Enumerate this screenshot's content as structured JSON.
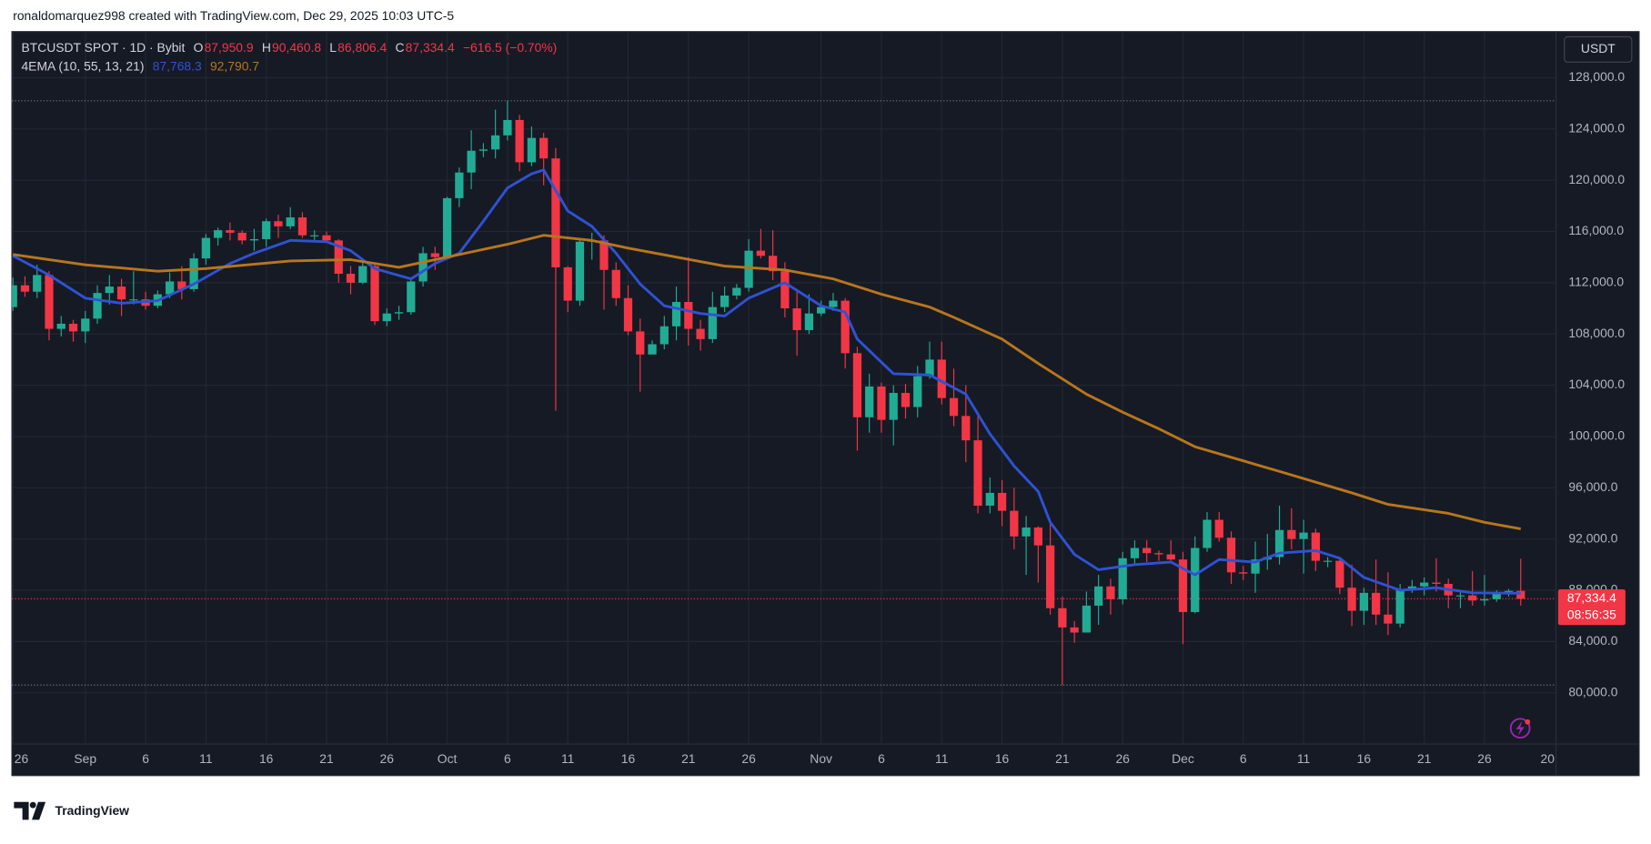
{
  "header": {
    "attribution": "ronaldomarquez998 created with TradingView.com, Dec 29, 2025 10:03 UTC-5"
  },
  "footer": {
    "brand": "TradingView"
  },
  "chart_data": {
    "type": "candlestick",
    "currency": "USDT",
    "legend": {
      "symbol": "BTCUSDT SPOT · 1D · Bybit",
      "items": [
        {
          "key": "O",
          "label": "87,950.9"
        },
        {
          "key": "H",
          "label": "90,460.8"
        },
        {
          "key": "L",
          "label": "86,806.4"
        },
        {
          "key": "C",
          "label": "87,334.4"
        }
      ],
      "change": "−616.5 (−0.70%)"
    },
    "indicator": {
      "name": "4EMA (10, 55, 13, 21)",
      "labels": [
        "87,768.3",
        "92,790.7"
      ]
    },
    "price_label": {
      "label": "87,334.4",
      "countdown": "08:56:35"
    },
    "categories": [
      "26",
      null,
      null,
      null,
      null,
      null,
      "Sep",
      null,
      null,
      null,
      null,
      "6",
      null,
      null,
      null,
      null,
      "11",
      null,
      null,
      null,
      null,
      "16",
      null,
      null,
      null,
      null,
      "21",
      null,
      null,
      null,
      null,
      "26",
      null,
      null,
      null,
      null,
      "Oct",
      null,
      null,
      null,
      null,
      "6",
      null,
      null,
      null,
      null,
      "11",
      null,
      null,
      null,
      null,
      "16",
      null,
      null,
      null,
      null,
      "21",
      null,
      null,
      null,
      null,
      "26",
      null,
      null,
      null,
      null,
      null,
      "Nov",
      null,
      null,
      null,
      null,
      "6",
      null,
      null,
      null,
      null,
      "11",
      null,
      null,
      null,
      null,
      "16",
      null,
      null,
      null,
      null,
      "21",
      null,
      null,
      null,
      null,
      "26",
      null,
      null,
      null,
      null,
      "Dec",
      null,
      null,
      null,
      null,
      "6",
      null,
      null,
      null,
      null,
      "11",
      null,
      null,
      null,
      null,
      "16",
      null,
      null,
      null,
      null,
      "21",
      null,
      null,
      null,
      null,
      "26",
      null,
      null,
      null,
      null,
      null,
      "20"
    ],
    "open": [
      110100,
      111800,
      111300,
      112600,
      108400,
      108800,
      108200,
      109200,
      111200,
      111700,
      110700,
      110700,
      110200,
      111100,
      112100,
      111500,
      113900,
      115500,
      116100,
      115900,
      115300,
      115400,
      116800,
      116400,
      117100,
      115700,
      115700,
      115300,
      112700,
      112000,
      113300,
      109000,
      109600,
      109700,
      112100,
      114300,
      114000,
      118600,
      120600,
      122300,
      122400,
      123500,
      124700,
      121400,
      123300,
      121700,
      113200,
      110600,
      115200,
      115300,
      113000,
      110800,
      108200,
      106400,
      107200,
      108600,
      110500,
      108400,
      107600,
      110100,
      111000,
      111600,
      114500,
      114100,
      112900,
      110000,
      108300,
      109600,
      110100,
      110600,
      106500,
      101500,
      103900,
      101300,
      103400,
      102300,
      104700,
      106000,
      103000,
      101600,
      99700,
      94600,
      95600,
      94200,
      92200,
      92900,
      91500,
      86600,
      85100,
      84700,
      86800,
      88300,
      87300,
      90500,
      91300,
      90900,
      90800,
      90400,
      86300,
      91300,
      93500,
      92100,
      89400,
      89300,
      90400,
      90600,
      92700,
      92000,
      92500,
      90300,
      90300,
      88200,
      86400,
      87800,
      86100,
      85400,
      88100,
      88300,
      88600,
      88500,
      87600,
      87600,
      87200,
      87300,
      87800,
      87950.9,
      null,
      null,
      null
    ],
    "high": [
      112400,
      112500,
      113400,
      112900,
      109400,
      109100,
      109800,
      111800,
      112600,
      112300,
      112900,
      111300,
      111400,
      112800,
      113300,
      114300,
      115800,
      116300,
      116700,
      116100,
      116200,
      117000,
      117300,
      117900,
      117500,
      116100,
      116000,
      115400,
      113300,
      113900,
      113500,
      110000,
      110200,
      112300,
      114800,
      114800,
      118700,
      121000,
      123900,
      122900,
      125500,
      126200,
      125100,
      124200,
      123700,
      122500,
      113300,
      115500,
      115900,
      115700,
      113600,
      111800,
      109200,
      107500,
      109400,
      111700,
      114000,
      109100,
      111300,
      111700,
      111900,
      115400,
      116200,
      116100,
      113600,
      111500,
      111100,
      110600,
      111200,
      110800,
      107000,
      104900,
      104200,
      104000,
      104100,
      105500,
      107400,
      107400,
      105300,
      104000,
      101900,
      96800,
      96600,
      96000,
      93800,
      93000,
      93200,
      87500,
      85600,
      87900,
      89200,
      88900,
      91000,
      91900,
      91900,
      91100,
      91900,
      91000,
      92200,
      94100,
      94100,
      92600,
      89900,
      91800,
      92400,
      94600,
      94400,
      93500,
      92800,
      90600,
      90600,
      90000,
      88200,
      90400,
      89400,
      88500,
      88800,
      89000,
      90500,
      88900,
      88000,
      89500,
      89200,
      88000,
      88100,
      90460.8,
      null,
      null,
      null
    ],
    "low": [
      109800,
      110900,
      110800,
      107500,
      107800,
      107400,
      107300,
      108800,
      110300,
      109400,
      110300,
      109900,
      110000,
      110800,
      110700,
      111300,
      113400,
      114900,
      115300,
      115000,
      114500,
      114800,
      115500,
      116200,
      115500,
      115300,
      115200,
      112000,
      111100,
      111900,
      108700,
      108600,
      109100,
      109500,
      111700,
      113000,
      113900,
      117900,
      119300,
      121800,
      121700,
      123100,
      120700,
      121100,
      119600,
      102000,
      109700,
      110200,
      113800,
      109900,
      110200,
      107900,
      103500,
      106400,
      106800,
      107500,
      107100,
      106700,
      107300,
      109700,
      110700,
      111300,
      113900,
      112200,
      109300,
      106300,
      108000,
      109400,
      109800,
      105300,
      98900,
      100300,
      100300,
      99300,
      101400,
      101500,
      104500,
      102500,
      100800,
      98000,
      94000,
      94000,
      93000,
      91200,
      89200,
      88600,
      86100,
      80600,
      83900,
      84700,
      85300,
      86100,
      86900,
      90100,
      90200,
      90300,
      90300,
      83800,
      86200,
      91000,
      91800,
      88500,
      88800,
      87800,
      89600,
      90000,
      91200,
      89300,
      89500,
      89800,
      87700,
      85200,
      85300,
      85300,
      84500,
      85100,
      87800,
      87600,
      87900,
      86600,
      86600,
      86800,
      86800,
      87100,
      87500,
      86806.4,
      null,
      null,
      null
    ],
    "close": [
      111800,
      111300,
      112600,
      108400,
      108800,
      108200,
      109200,
      111200,
      111700,
      110700,
      110700,
      110200,
      111100,
      112100,
      111500,
      113900,
      115500,
      116100,
      115900,
      115300,
      115400,
      116800,
      116400,
      117100,
      115700,
      115700,
      115300,
      112700,
      112000,
      113300,
      109000,
      109600,
      109700,
      112100,
      114300,
      114000,
      118600,
      120600,
      122300,
      122400,
      123500,
      124700,
      121400,
      123300,
      121700,
      113200,
      110600,
      115200,
      115300,
      113000,
      110800,
      108200,
      106400,
      107200,
      108600,
      110500,
      108400,
      107600,
      110100,
      111000,
      111600,
      114500,
      114100,
      112900,
      110000,
      108300,
      109600,
      110100,
      110600,
      106500,
      101500,
      103900,
      101300,
      103400,
      102300,
      104700,
      106000,
      103000,
      101600,
      99700,
      94600,
      95600,
      94200,
      92200,
      92900,
      91500,
      86600,
      85100,
      84700,
      86800,
      88300,
      87300,
      90500,
      91300,
      90900,
      90800,
      90400,
      86300,
      91300,
      93500,
      92100,
      89400,
      89300,
      90400,
      90600,
      92700,
      92000,
      92500,
      90300,
      90300,
      88200,
      86400,
      87800,
      86100,
      85400,
      88100,
      88300,
      88600,
      88500,
      87600,
      87600,
      87200,
      87300,
      87800,
      87950.9,
      87334.4,
      null,
      null,
      null
    ],
    "up_color": "#22ab94",
    "down_color": "#f23645",
    "series": [
      {
        "color": "#2f52d4",
        "x": [
          0,
          3,
          6,
          9,
          12,
          15,
          18,
          20,
          23,
          26,
          28,
          30,
          33,
          35,
          37,
          39,
          41,
          43,
          44,
          46,
          48,
          50,
          52,
          54,
          57,
          59,
          61,
          64,
          66,
          67,
          69,
          70,
          73,
          76,
          79,
          81,
          83,
          85,
          86,
          88,
          90,
          93,
          96,
          98,
          100,
          103,
          105,
          108,
          110,
          112,
          115,
          118,
          121,
          125
        ],
        "values": [
          114100,
          112600,
          110800,
          110400,
          110600,
          111900,
          113500,
          114300,
          115300,
          115200,
          114500,
          113100,
          112300,
          113500,
          114300,
          116800,
          119400,
          120500,
          120800,
          117600,
          116400,
          114300,
          111900,
          110200,
          109600,
          109400,
          110800,
          112000,
          110800,
          110200,
          109700,
          107600,
          104900,
          104800,
          103300,
          100200,
          97700,
          95700,
          93300,
          90800,
          89600,
          90000,
          90200,
          89200,
          90400,
          90200,
          90900,
          91100,
          90500,
          89000,
          88000,
          88200,
          87800,
          87768.3
        ]
      },
      {
        "color": "#b8761c",
        "x": [
          0,
          6,
          12,
          16,
          23,
          28,
          32,
          36,
          41,
          44,
          48,
          51,
          55,
          59,
          64,
          68,
          72,
          76,
          78,
          82,
          85,
          89,
          92,
          95,
          98,
          102,
          106,
          111,
          114,
          119,
          122,
          125
        ],
        "values": [
          114200,
          113400,
          112900,
          113100,
          113700,
          113800,
          113200,
          114000,
          115000,
          115700,
          115300,
          114700,
          114000,
          113300,
          113000,
          112300,
          111100,
          110100,
          109300,
          107600,
          105700,
          103300,
          101900,
          100600,
          99200,
          98100,
          97000,
          95600,
          94700,
          94000,
          93300,
          92790.7
        ]
      }
    ],
    "ylim": [
      76000,
      131600
    ],
    "yticks": [
      {
        "value": 80000,
        "label": "80,000.0"
      },
      {
        "value": 84000,
        "label": "84,000.0"
      },
      {
        "value": 88000,
        "label": "88,000.0"
      },
      {
        "value": 92000,
        "label": "92,000.0"
      },
      {
        "value": 96000,
        "label": "96,000.0"
      },
      {
        "value": 100000,
        "label": "100,000.0"
      },
      {
        "value": 104000,
        "label": "104,000.0"
      },
      {
        "value": 108000,
        "label": "108,000.0"
      },
      {
        "value": 112000,
        "label": "112,000.0"
      },
      {
        "value": 116000,
        "label": "116,000.0"
      },
      {
        "value": 120000,
        "label": "120,000.0"
      },
      {
        "value": 124000,
        "label": "124,000.0"
      },
      {
        "value": 128000,
        "label": "128,000.0"
      }
    ],
    "grid": true
  }
}
